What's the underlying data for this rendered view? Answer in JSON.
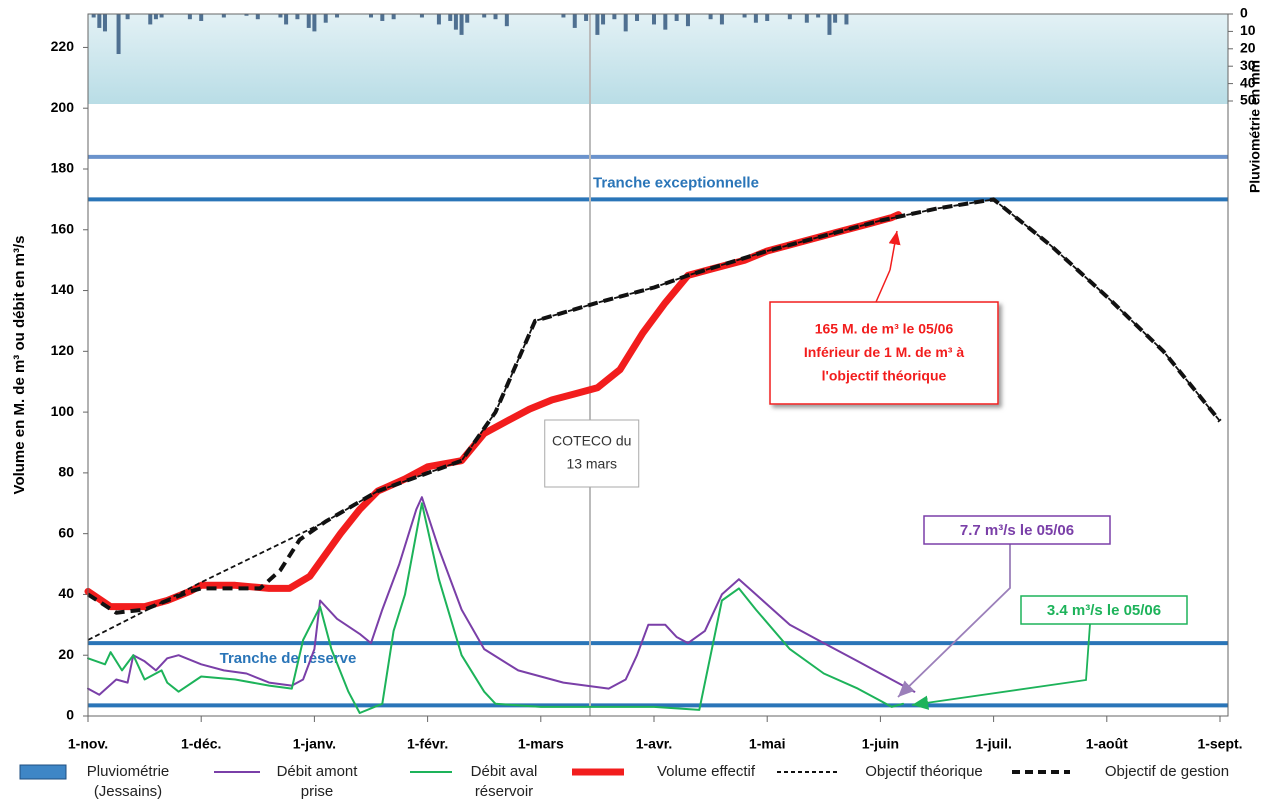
{
  "chart_data": {
    "type": "line",
    "y_axis_title": "Volume en M. de m³ ou débit en m³/s",
    "y2_axis_title": "Pluviométrie en mm",
    "xlim": [
      0,
      10
    ],
    "xticks": [
      {
        "value": 0,
        "label": "1-nov."
      },
      {
        "value": 1,
        "label": "1-déc."
      },
      {
        "value": 2,
        "label": "1-janv."
      },
      {
        "value": 3,
        "label": "1-févr."
      },
      {
        "value": 4,
        "label": "1-mars"
      },
      {
        "value": 5,
        "label": "1-avr."
      },
      {
        "value": 6,
        "label": "1-mai"
      },
      {
        "value": 7,
        "label": "1-juin"
      },
      {
        "value": 8,
        "label": "1-juil."
      },
      {
        "value": 9,
        "label": "1-août"
      },
      {
        "value": 10,
        "label": "1-sept."
      }
    ],
    "ylim": [
      0,
      231
    ],
    "yticks": [
      0,
      20,
      40,
      60,
      80,
      100,
      120,
      140,
      160,
      180,
      200,
      220
    ],
    "y2lim": [
      0,
      50
    ],
    "y2_inverted": true,
    "y2ticks": [
      0,
      10,
      20,
      30,
      40,
      50
    ],
    "reference_lines": [
      {
        "value": 184,
        "color": "#6b93cc"
      },
      {
        "value": 170,
        "color": "#2a75b8",
        "label": "Tranche exceptionnelle"
      },
      {
        "value": 24,
        "color": "#2a75b8",
        "label": "Tranche de réserve"
      },
      {
        "value": 3.5,
        "color": "#2a75b8"
      }
    ],
    "series": [
      {
        "name": "Pluviométrie (Jessains)",
        "type": "bar",
        "axis": "y2",
        "color": "#4f7091",
        "x": [
          0.05,
          0.1,
          0.15,
          0.27,
          0.35,
          0.55,
          0.6,
          0.65,
          0.9,
          1.0,
          1.2,
          1.4,
          1.5,
          1.7,
          1.75,
          1.85,
          1.95,
          2.0,
          2.1,
          2.2,
          2.5,
          2.6,
          2.7,
          2.95,
          3.1,
          3.2,
          3.25,
          3.3,
          3.35,
          3.5,
          3.6,
          3.7,
          4.2,
          4.3,
          4.4,
          4.5,
          4.55,
          4.65,
          4.75,
          4.85,
          5.0,
          5.1,
          5.2,
          5.3,
          5.5,
          5.6,
          5.8,
          5.9,
          6.0,
          6.2,
          6.35,
          6.45,
          6.55,
          6.6,
          6.7
        ],
        "values": [
          2,
          8,
          10,
          23,
          3,
          6,
          3,
          2,
          3,
          4,
          2,
          1,
          3,
          2,
          6,
          3,
          8,
          10,
          5,
          2,
          2,
          4,
          3,
          2,
          6,
          4,
          9,
          12,
          5,
          2,
          3,
          7,
          2,
          8,
          4,
          12,
          6,
          3,
          10,
          4,
          6,
          9,
          4,
          7,
          3,
          6,
          2,
          5,
          4,
          3,
          5,
          2,
          12,
          5,
          6
        ]
      },
      {
        "name": "Débit amont prise",
        "type": "line",
        "color": "#7a3fa8",
        "weight": "normal",
        "dash": false,
        "x": [
          0,
          0.1,
          0.25,
          0.35,
          0.4,
          0.5,
          0.6,
          0.7,
          0.8,
          1.0,
          1.2,
          1.4,
          1.6,
          1.8,
          1.9,
          2.0,
          2.05,
          2.2,
          2.4,
          2.5,
          2.6,
          2.75,
          2.9,
          2.95,
          3.1,
          3.3,
          3.5,
          3.8,
          4.2,
          4.6,
          4.75,
          4.85,
          4.95,
          5.1,
          5.2,
          5.3,
          5.45,
          5.6,
          5.75,
          5.9,
          6.2,
          6.5,
          6.8,
          7.0,
          7.2,
          7.3
        ],
        "values": [
          9,
          7,
          12,
          11,
          20,
          18,
          15,
          19,
          20,
          17,
          15,
          14,
          11,
          10,
          12,
          22,
          38,
          32,
          27,
          24,
          35,
          50,
          68,
          72,
          55,
          35,
          22,
          15,
          11,
          9,
          12,
          20,
          30,
          30,
          26,
          24,
          28,
          40,
          45,
          40,
          30,
          24,
          18,
          14,
          10,
          8
        ]
      },
      {
        "name": "Débit aval réservoir",
        "type": "line",
        "color": "#1db35a",
        "weight": "normal",
        "dash": false,
        "x": [
          0,
          0.15,
          0.2,
          0.3,
          0.4,
          0.5,
          0.65,
          0.7,
          0.8,
          1.0,
          1.3,
          1.6,
          1.8,
          1.9,
          2.05,
          2.15,
          2.3,
          2.4,
          2.6,
          2.7,
          2.8,
          2.95,
          3.1,
          3.3,
          3.5,
          3.6,
          4.0,
          5.0,
          5.4,
          5.5,
          5.6,
          5.75,
          5.9,
          6.2,
          6.5,
          6.8,
          7.0,
          7.1,
          7.2
        ],
        "values": [
          19,
          17,
          21,
          15,
          20,
          12,
          15,
          11,
          8,
          13,
          12,
          10,
          9,
          25,
          36,
          22,
          8,
          1,
          4,
          28,
          40,
          70,
          45,
          20,
          8,
          4,
          3,
          3,
          2,
          20,
          38,
          42,
          35,
          22,
          14,
          9,
          5,
          3,
          4
        ]
      },
      {
        "name": "Volume effectif",
        "type": "line",
        "color": "#f21d1d",
        "weight": "bold",
        "dash": false,
        "x": [
          0,
          0.2,
          0.5,
          0.7,
          0.9,
          1.0,
          1.3,
          1.6,
          1.78,
          1.96,
          2.23,
          2.4,
          2.56,
          2.8,
          3.0,
          3.3,
          3.5,
          3.7,
          3.9,
          4.1,
          4.3,
          4.5,
          4.7,
          4.9,
          5.1,
          5.3,
          5.5,
          5.8,
          6.0,
          6.3,
          6.6,
          6.9,
          7.1,
          7.16
        ],
        "values": [
          41,
          36,
          36,
          38,
          41,
          43,
          43,
          42,
          42,
          46,
          60,
          68,
          74,
          78,
          82,
          84,
          93,
          97,
          101,
          104,
          106,
          108,
          114,
          126,
          136,
          145,
          147,
          150,
          153,
          156,
          159,
          162,
          164,
          165
        ]
      },
      {
        "name": "Objectif théorique",
        "type": "line",
        "color": "#111111",
        "weight": "normal",
        "dash": true,
        "x": [
          0,
          1.0,
          2.1,
          2.56,
          3.3,
          3.6,
          3.95,
          4.5,
          5.0,
          5.3,
          6.0,
          7.0,
          7.5,
          8.0,
          8.5,
          9.0,
          9.5,
          10.0
        ],
        "values": [
          25,
          44,
          64,
          74,
          84,
          100,
          130,
          136,
          141,
          145,
          153,
          163,
          167,
          170,
          155,
          138,
          120,
          97
        ]
      },
      {
        "name": "Objectif de gestion",
        "type": "line",
        "color": "#111111",
        "weight": "bold",
        "dash": true,
        "x": [
          0,
          0.25,
          0.5,
          0.9,
          1.0,
          1.52,
          1.7,
          1.87,
          2.1,
          2.56,
          3.3,
          3.6,
          3.95,
          4.5,
          5.0,
          5.3,
          6.0,
          7.0,
          7.5,
          8.0,
          8.5,
          9.0,
          9.5,
          10.0
        ],
        "values": [
          40,
          34,
          35,
          41,
          42,
          42,
          48,
          58,
          64,
          74,
          84,
          100,
          130,
          136,
          141,
          145,
          153,
          163,
          167,
          170,
          155,
          138,
          120,
          97
        ]
      }
    ],
    "annotations": [
      {
        "lines": [
          "COTECO du",
          "13 mars"
        ],
        "x": 4.45
      },
      {
        "lines": [
          "165 M. de m³ le 05/06",
          "Inférieur de 1 M. de m³ à",
          "l'objectif théorique"
        ],
        "color": "#f21d1d"
      },
      {
        "lines": [
          "7.7 m³/s le 05/06"
        ],
        "color": "#7a3fa8"
      },
      {
        "lines": [
          "3.4 m³/s le 05/06"
        ],
        "color": "#1db35a"
      }
    ]
  }
}
